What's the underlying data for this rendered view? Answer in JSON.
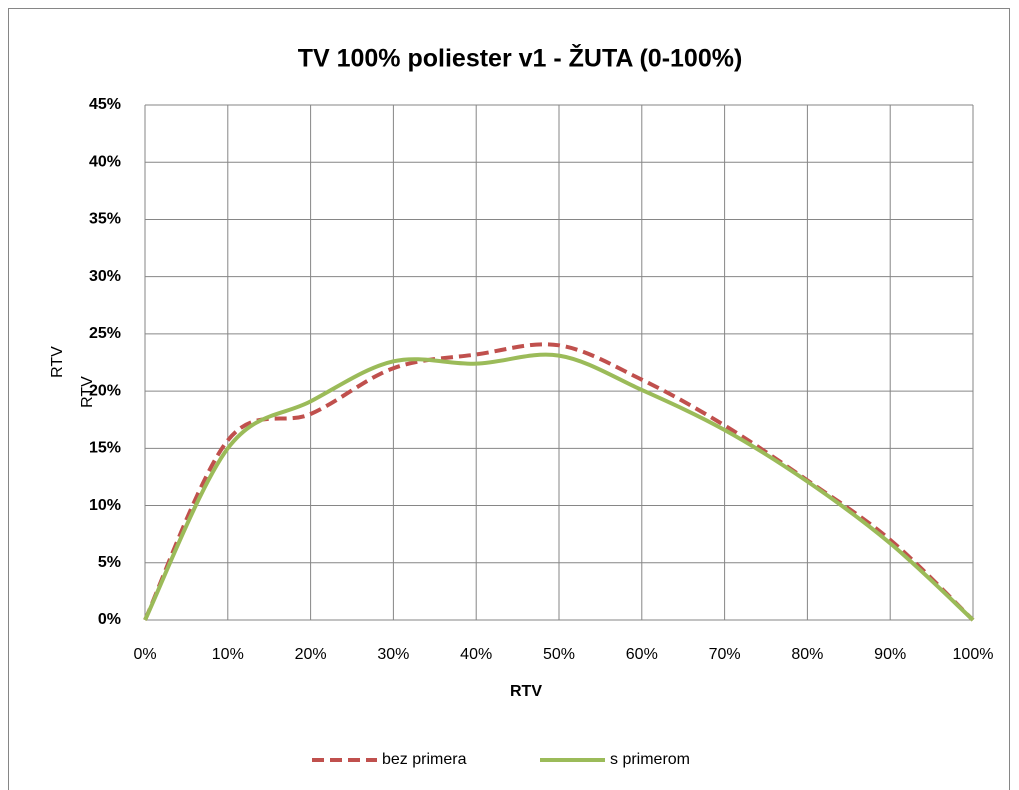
{
  "chart_data": {
    "type": "line",
    "title": "TV 100% poliester v1 - ŽUTA (0-100%)",
    "x_label": "RTV",
    "y_label": "RTV",
    "y_label_2": "RTV",
    "x": [
      0,
      10,
      20,
      30,
      40,
      50,
      60,
      70,
      80,
      90,
      100
    ],
    "series": [
      {
        "name": "bez primera",
        "color": "#c0504d",
        "dash": true,
        "values": [
          0,
          15.7,
          18.0,
          22.0,
          23.2,
          24.0,
          21.0,
          17.0,
          12.2,
          7.0,
          0
        ]
      },
      {
        "name": "s primerom",
        "color": "#9bbb59",
        "dash": false,
        "values": [
          0,
          15.0,
          19.1,
          22.6,
          22.4,
          23.1,
          20.1,
          16.6,
          12.1,
          6.7,
          0
        ]
      }
    ],
    "xlim": [
      0,
      100
    ],
    "xticks": [
      {
        "value": 0,
        "label": "0%"
      },
      {
        "value": 10,
        "label": "10%"
      },
      {
        "value": 20,
        "label": "20%"
      },
      {
        "value": 30,
        "label": "30%"
      },
      {
        "value": 40,
        "label": "40%"
      },
      {
        "value": 50,
        "label": "50%"
      },
      {
        "value": 60,
        "label": "60%"
      },
      {
        "value": 70,
        "label": "70%"
      },
      {
        "value": 80,
        "label": "80%"
      },
      {
        "value": 90,
        "label": "90%"
      },
      {
        "value": 100,
        "label": "100%"
      }
    ],
    "ylim": [
      0,
      45
    ],
    "yticks": [
      {
        "value": 0,
        "label": "0%"
      },
      {
        "value": 5,
        "label": "5%"
      },
      {
        "value": 10,
        "label": "10%"
      },
      {
        "value": 15,
        "label": "15%"
      },
      {
        "value": 20,
        "label": "20%"
      },
      {
        "value": 25,
        "label": "25%"
      },
      {
        "value": 30,
        "label": "30%"
      },
      {
        "value": 35,
        "label": "35%"
      },
      {
        "value": 40,
        "label": "40%"
      },
      {
        "value": 45,
        "label": "45%"
      }
    ],
    "grid": true,
    "legend": "bottom"
  }
}
